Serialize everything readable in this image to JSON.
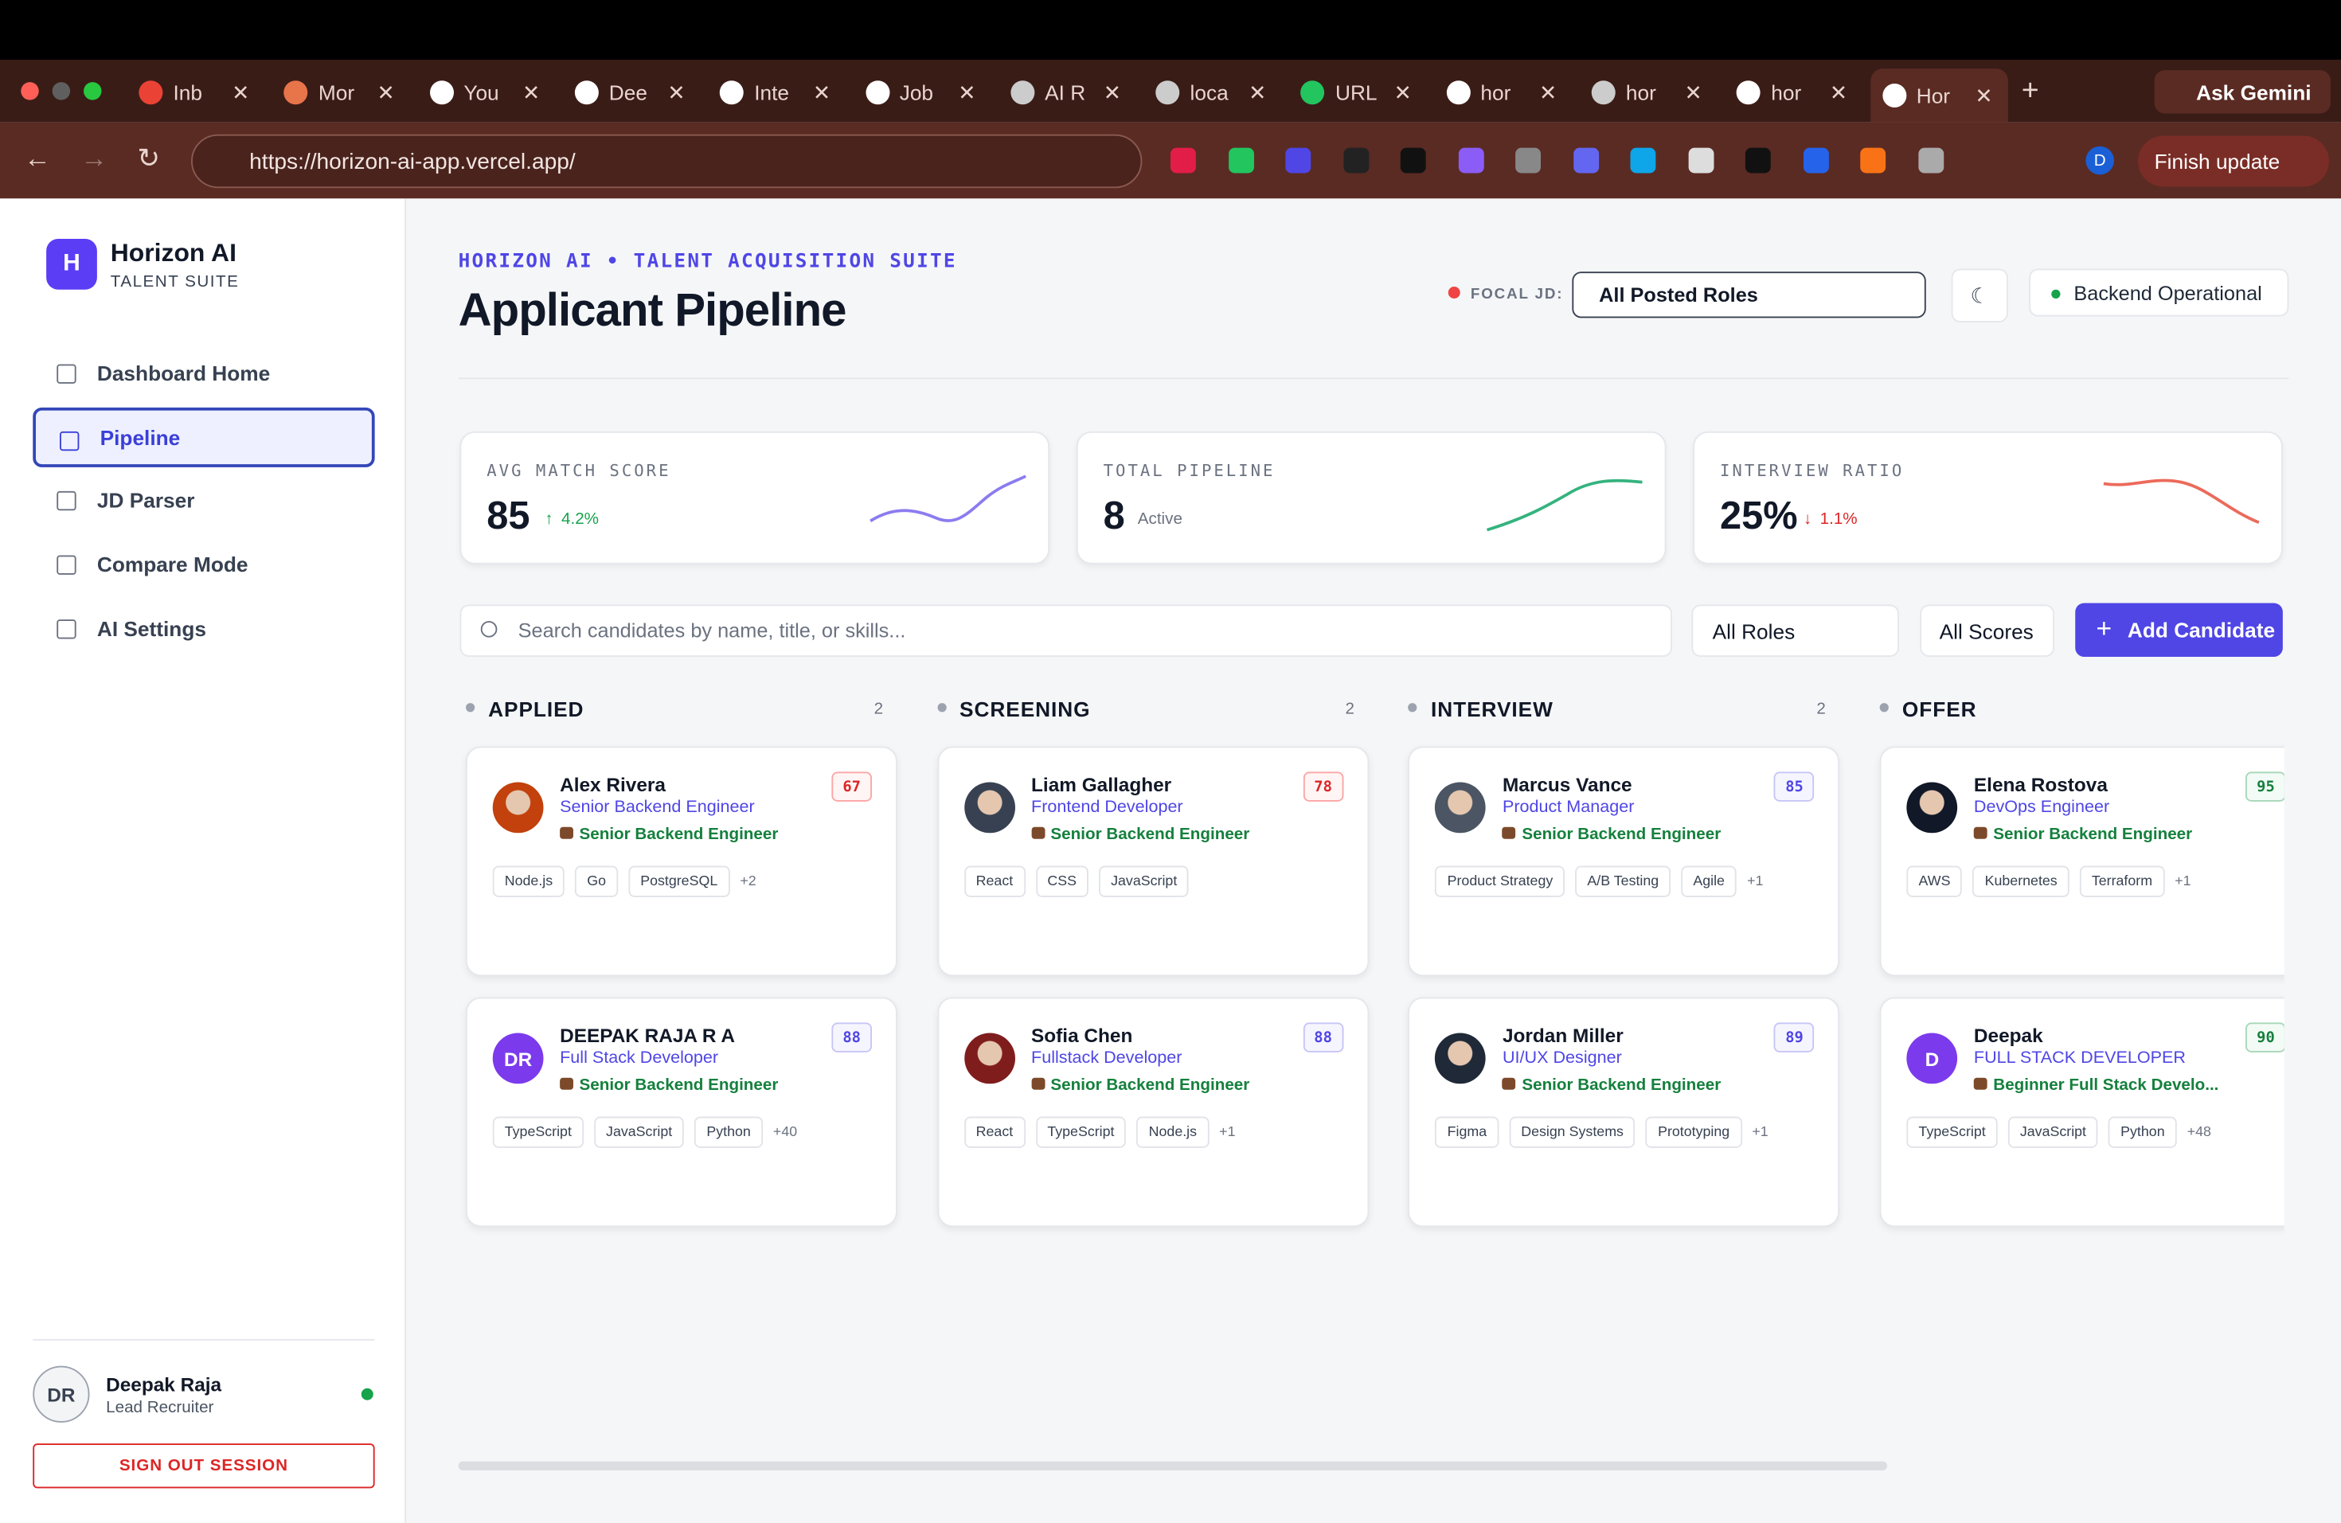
{
  "browser": {
    "tabs": [
      "Inb",
      "Mor",
      "You",
      "Dee",
      "Inte",
      "Job",
      "AI R",
      "loca",
      "URL",
      "hor",
      "hor",
      "hor",
      "Hor"
    ],
    "url": "https://horizon-ai-app.vercel.app/",
    "ask_gemini": "Ask Gemini",
    "profile": "D",
    "finish_update": "Finish update"
  },
  "sidebar": {
    "logo": "H",
    "brand": "Horizon AI",
    "brand_sub": "TALENT SUITE",
    "nav": [
      "Dashboard Home",
      "Pipeline",
      "JD Parser",
      "Compare Mode",
      "AI Settings"
    ],
    "user": {
      "initials": "DR",
      "name": "Deepak Raja",
      "role": "Lead Recruiter"
    },
    "sign_out": "SIGN OUT SESSION"
  },
  "header": {
    "eyebrow": "HORIZON AI • TALENT ACQUISITION SUITE",
    "title": "Applicant Pipeline",
    "focal_label": "FOCAL JD:",
    "focal_value": "All Posted Roles",
    "status": "Backend Operational"
  },
  "stats": [
    {
      "label": "AVG MATCH SCORE",
      "value": "85",
      "delta": "4.2%"
    },
    {
      "label": "TOTAL PIPELINE",
      "value": "8",
      "note": "Active"
    },
    {
      "label": "INTERVIEW RATIO",
      "value": "25%",
      "delta": "1.1%"
    }
  ],
  "toolbar": {
    "search": "Search candidates by name, title, or skills...",
    "role_filter": "All Roles",
    "score_filter": "All Scores",
    "add": "Add Candidate"
  },
  "columns": [
    {
      "name": "APPLIED",
      "count": "2",
      "cards": [
        {
          "name": "Alex Rivera",
          "title": "Senior Backend Engineer",
          "jd": "Senior Backend Engineer",
          "score": 67,
          "skills": [
            "Node.js",
            "Go",
            "PostgreSQL"
          ],
          "more": "+2"
        },
        {
          "initials": "DR",
          "name": "DEEPAK RAJA R A",
          "title": "Full Stack Developer",
          "jd": "Senior Backend Engineer",
          "score": 88,
          "skills": [
            "TypeScript",
            "JavaScript",
            "Python"
          ],
          "more": "+40"
        }
      ]
    },
    {
      "name": "SCREENING",
      "count": "2",
      "cards": [
        {
          "name": "Liam Gallagher",
          "title": "Frontend Developer",
          "jd": "Senior Backend Engineer",
          "score": 78,
          "skills": [
            "React",
            "CSS",
            "JavaScript"
          ]
        },
        {
          "name": "Sofia Chen",
          "title": "Fullstack Developer",
          "jd": "Senior Backend Engineer",
          "score": 88,
          "skills": [
            "React",
            "TypeScript",
            "Node.js"
          ],
          "more": "+1"
        }
      ]
    },
    {
      "name": "INTERVIEW",
      "count": "2",
      "cards": [
        {
          "name": "Marcus Vance",
          "title": "Product Manager",
          "jd": "Senior Backend Engineer",
          "score": 85,
          "skills": [
            "Product Strategy",
            "A/B Testing",
            "Agile"
          ],
          "more": "+1"
        },
        {
          "name": "Jordan Miller",
          "title": "UI/UX Designer",
          "jd": "Senior Backend Engineer",
          "score": 89,
          "skills": [
            "Figma",
            "Design Systems",
            "Prototyping"
          ],
          "more": "+1"
        }
      ]
    },
    {
      "name": "OFFER",
      "cards": [
        {
          "name": "Elena Rostova",
          "title": "DevOps Engineer",
          "jd": "Senior Backend Engineer",
          "score": 95,
          "skills": [
            "AWS",
            "Kubernetes",
            "Terraform"
          ],
          "more": "+1"
        },
        {
          "initials": "D",
          "name": "Deepak",
          "title": "FULL STACK DEVELOPER",
          "jd": "Beginner Full Stack Develo...",
          "score": 90,
          "skills": [
            "TypeScript",
            "JavaScript",
            "Python"
          ],
          "more": "+48"
        }
      ]
    }
  ]
}
